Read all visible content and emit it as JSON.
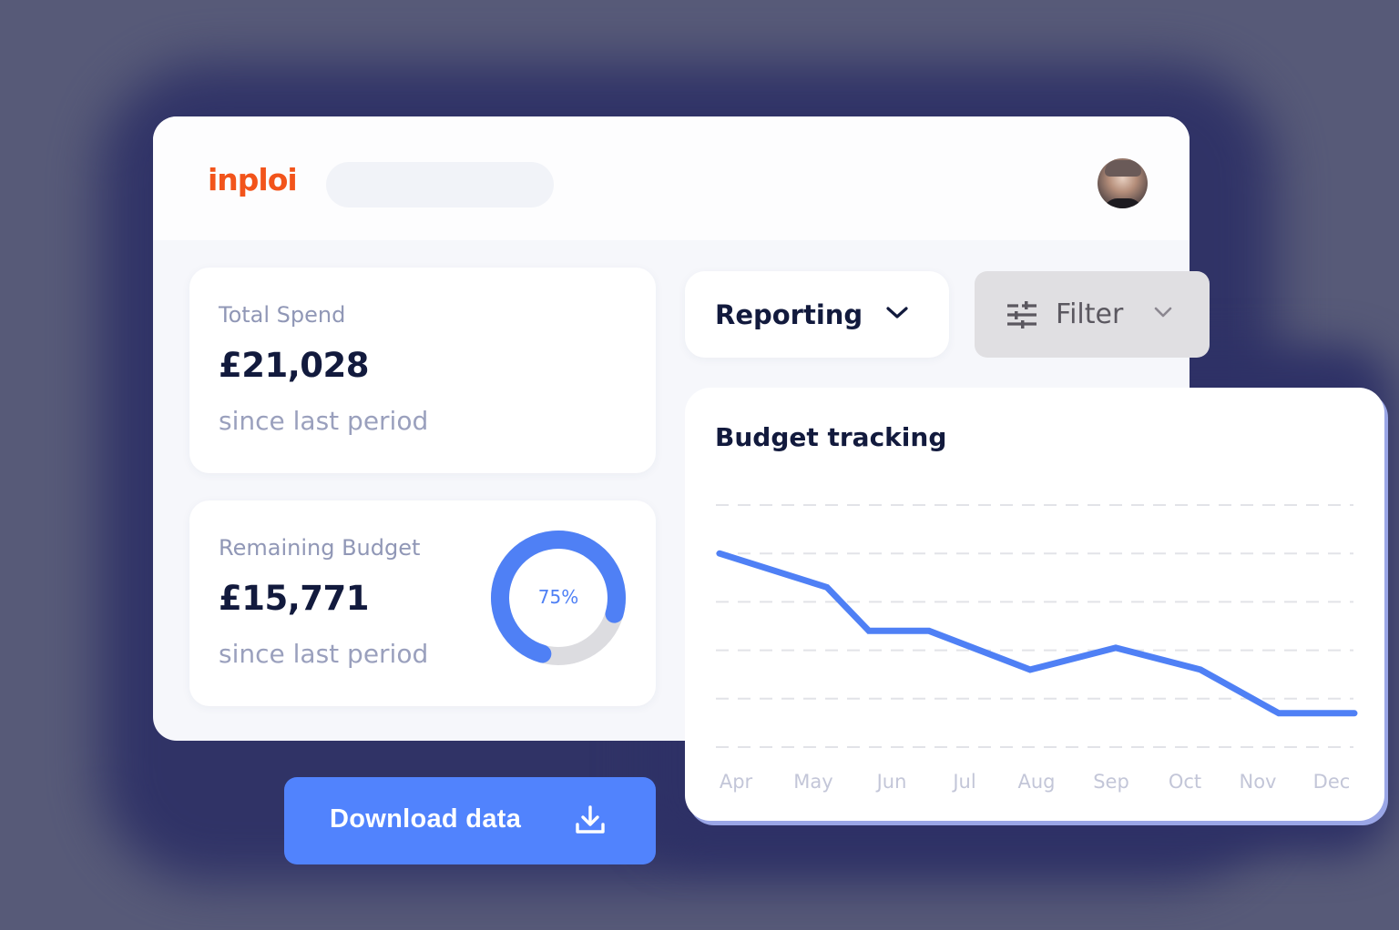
{
  "header": {
    "logo_text": "inploi",
    "search_placeholder": "",
    "avatar_alt": "user avatar"
  },
  "stats": [
    {
      "label": "Total Spend",
      "value": "£21,028",
      "sub": "since last period"
    },
    {
      "label": "Remaining Budget",
      "value": "£15,771",
      "sub": "since last period",
      "percent_label": "75%",
      "percent": 75
    }
  ],
  "controls": {
    "reporting_label": "Reporting",
    "filter_label": "Filter"
  },
  "download_label": "Download data",
  "colors": {
    "accent": "#5183fd",
    "logo": "#f2541b",
    "text_dark": "#121a3d",
    "text_muted": "#9097b6",
    "background": "#575a78",
    "halo": "#2e3166",
    "chart_line": "#4f80f5",
    "donut_track": "#dcdce0"
  },
  "chart_data": {
    "type": "line",
    "title": "Budget tracking",
    "categories": [
      "Apr",
      "May",
      "Jun",
      "Jul",
      "Aug",
      "Sep",
      "Oct",
      "Nov",
      "Dec"
    ],
    "series": [
      {
        "name": "Budget",
        "values": [
          4.0,
          3.3,
          2.4,
          2.4,
          1.6,
          2.05,
          1.6,
          0.7,
          0.7
        ]
      }
    ],
    "xlabel": "",
    "ylabel": "",
    "ylim": [
      0,
      5
    ],
    "grid": true,
    "gridline_count": 6,
    "legend": "none"
  }
}
